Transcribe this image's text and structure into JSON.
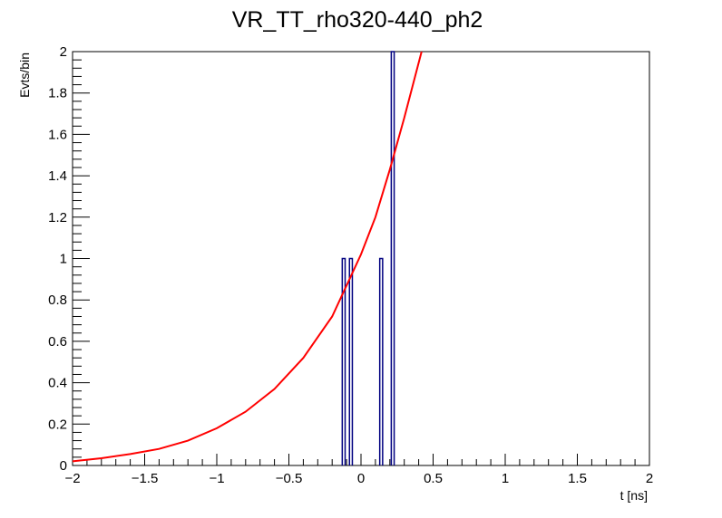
{
  "chart_data": {
    "type": "bar",
    "title": "VR_TT_rho320-440_ph2",
    "xlabel": "t [ns]",
    "ylabel": "Evts/bin",
    "xlim": [
      -2,
      2
    ],
    "ylim": [
      0,
      2
    ],
    "x_tick_labels": [
      "−2",
      "−1.5",
      "−1",
      "−0.5",
      "0",
      "0.5",
      "1",
      "1.5",
      "2"
    ],
    "y_tick_labels": [
      "0",
      "0.2",
      "0.4",
      "0.6",
      "0.8",
      "1",
      "1.2",
      "1.4",
      "1.6",
      "1.8",
      "2"
    ],
    "histogram": {
      "name": "",
      "color": "#000080",
      "bins": [
        {
          "x": -0.12,
          "value": 1
        },
        {
          "x": -0.07,
          "value": 1
        },
        {
          "x": 0.14,
          "value": 1
        },
        {
          "x": 0.22,
          "value": 2
        }
      ]
    },
    "fit_curve": {
      "color": "#ff0000",
      "x": [
        -2.0,
        -1.8,
        -1.6,
        -1.4,
        -1.2,
        -1.0,
        -0.8,
        -0.6,
        -0.4,
        -0.2,
        0.0,
        0.1,
        0.2,
        0.3,
        0.42
      ],
      "y": [
        0.02,
        0.035,
        0.055,
        0.08,
        0.12,
        0.18,
        0.26,
        0.37,
        0.52,
        0.72,
        1.02,
        1.2,
        1.43,
        1.68,
        2.0
      ]
    },
    "grid": false,
    "legend": "none"
  }
}
